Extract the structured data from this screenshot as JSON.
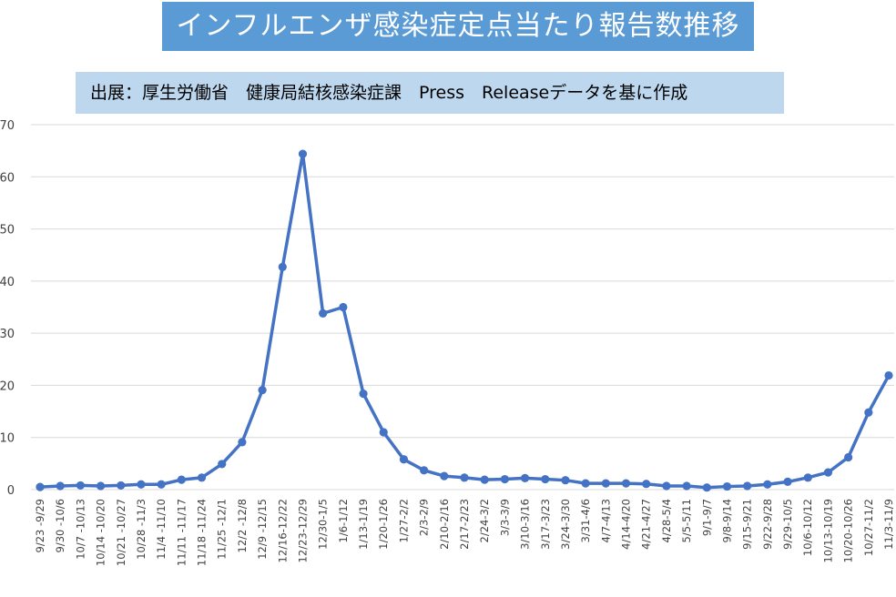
{
  "chart_data": {
    "type": "line",
    "title": "インフルエンザ感染症定点当たり報告数推移",
    "subtitle": "出展：厚生労働省　健康局結核感染症課　Press　Releaseデータを基に作成",
    "xlabel": "",
    "ylabel": "",
    "ylim": [
      0,
      70
    ],
    "yticks": [
      0,
      10,
      20,
      30,
      40,
      50,
      60,
      70
    ],
    "grid": true,
    "legend": "none",
    "line_color": "#4472c4",
    "categories": [
      "9/23 -9/29",
      "9/30 -10/6",
      "10/7 -10/13",
      "10/14 -10/20",
      "10/21 -10/27",
      "10/28 -11/3",
      "11/4 -11/10",
      "11/11 -11/17",
      "11/18 -11/24",
      "11/25 -12/1",
      "12/2 -12/8",
      "12/9 -12/15",
      "12/16-12/22",
      "12/23-12/29",
      "12/30-1/5",
      "1/6-1/12",
      "1/13-1/19",
      "1/20-1/26",
      "1/27-2/2",
      "2/3-2/9",
      "2/10-2/16",
      "2/17-2/23",
      "2/24-3/2",
      "3/3-3/9",
      "3/10-3/16",
      "3/17-3/23",
      "3/24-3/30",
      "3/31-4/6",
      "4/7-4/13",
      "4/14-4/20",
      "4/21-4/27",
      "4/28-5/4",
      "5/5-5/11",
      "9/1-9/7",
      "9/8-9/14",
      "9/15-9/21",
      "9/22-9/28",
      "9/29-10/5",
      "10/6-10/12",
      "10/13-10/19",
      "10/20-10/26",
      "10/27-11/2",
      "11/3-11/9"
    ],
    "values": [
      0.5,
      0.7,
      0.8,
      0.7,
      0.8,
      1.0,
      1.0,
      1.9,
      2.3,
      4.9,
      9.1,
      19.1,
      42.7,
      64.4,
      33.8,
      35.0,
      18.4,
      11.0,
      5.8,
      3.7,
      2.6,
      2.3,
      1.9,
      2.0,
      2.2,
      2.0,
      1.8,
      1.2,
      1.2,
      1.2,
      1.1,
      0.7,
      0.7,
      0.4,
      0.6,
      0.7,
      1.0,
      1.5,
      2.3,
      3.3,
      6.2,
      14.8,
      21.9
    ]
  }
}
